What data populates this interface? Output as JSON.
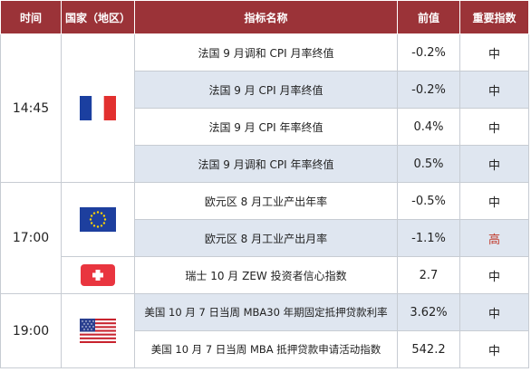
{
  "header": {
    "time": "时间",
    "country": "国家（地区）",
    "indicator": "指标名称",
    "previous": "前值",
    "importance": "重要指数"
  },
  "colors": {
    "header_bg": "#9b3338",
    "alt_row": "#dfe6f0",
    "high_importance": "#c0392b"
  },
  "groups": [
    {
      "time": "14:45",
      "country_flag": "france-flag-icon",
      "rows": [
        {
          "indicator": "法国 9 月调和 CPI 月率终值",
          "previous": "-0.2%",
          "importance": "中"
        },
        {
          "indicator": "法国 9 月 CPI 月率终值",
          "previous": "-0.2%",
          "importance": "中"
        },
        {
          "indicator": "法国 9 月 CPI 年率终值",
          "previous": "0.4%",
          "importance": "中"
        },
        {
          "indicator": "法国 9 月调和 CPI 年率终值",
          "previous": "0.5%",
          "importance": "中"
        }
      ]
    },
    {
      "time": "17:00",
      "subgroups": [
        {
          "country_flag": "eu-flag-icon",
          "rows": [
            {
              "indicator": "欧元区 8 月工业产出年率",
              "previous": "-0.5%",
              "importance": "中"
            },
            {
              "indicator": "欧元区 8 月工业产出月率",
              "previous": "-1.1%",
              "importance": "高"
            }
          ]
        },
        {
          "country_flag": "switzerland-flag-icon",
          "rows": [
            {
              "indicator": "瑞士 10 月 ZEW 投资者信心指数",
              "previous": "2.7",
              "importance": "中"
            }
          ]
        }
      ]
    },
    {
      "time": "19:00",
      "country_flag": "usa-flag-icon",
      "rows": [
        {
          "indicator": "美国 10 月 7 日当周 MBA30 年期固定抵押贷款利率",
          "previous": "3.62%",
          "importance": "中"
        },
        {
          "indicator": "美国 10 月 7 日当周 MBA 抵押贷款申请活动指数",
          "previous": "542.2",
          "importance": "中"
        }
      ]
    }
  ]
}
